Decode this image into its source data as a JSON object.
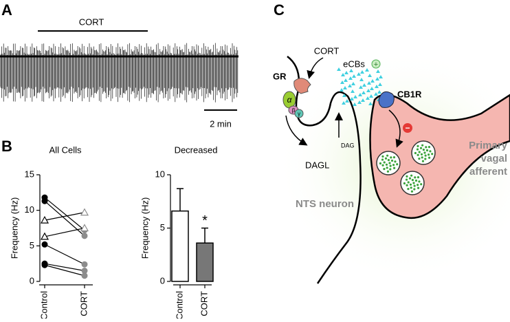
{
  "panel_a": {
    "label": "A",
    "drug": "CORT",
    "scale_bar": "2 min"
  },
  "panel_b": {
    "label": "B"
  },
  "chart_data": [
    {
      "type": "paired",
      "title": "All Cells",
      "y_label": "Frequency (Hz)",
      "categories": [
        "Control",
        "CORT"
      ],
      "colors": [
        "#000000",
        "#8c8c8c"
      ],
      "ylim": [
        0,
        15
      ],
      "yticks": [
        0,
        5,
        10,
        15
      ],
      "series": [
        {
          "marker": "circle",
          "values": [
            11.8,
            7.2
          ]
        },
        {
          "marker": "circle",
          "values": [
            11.3,
            6.4
          ]
        },
        {
          "marker": "triangle",
          "values": [
            8.6,
            9.7
          ]
        },
        {
          "marker": "triangle",
          "values": [
            6.3,
            7.5
          ]
        },
        {
          "marker": "circle",
          "values": [
            5.2,
            2.4
          ]
        },
        {
          "marker": "circle",
          "values": [
            2.5,
            1.5
          ]
        },
        {
          "marker": "circle",
          "values": [
            2.3,
            0.8
          ]
        }
      ]
    },
    {
      "type": "bar",
      "title": "Decreased",
      "y_label": "Frequency (Hz)",
      "categories": [
        "Control",
        "CORT"
      ],
      "values": [
        6.6,
        3.6
      ],
      "errors": [
        2.1,
        1.4
      ],
      "colors": [
        "#ffffff",
        "#777777"
      ],
      "ylim": [
        0,
        10
      ],
      "yticks": [
        0,
        5,
        10
      ],
      "annotation": "*"
    }
  ],
  "panel_c": {
    "label": "C",
    "drug": "CORT",
    "receptor": "GR",
    "alpha": "α",
    "beta": "β",
    "gamma": "γ",
    "ecbs": "eCBs",
    "plus": "+",
    "cb1r": "CB1R",
    "minus": "−",
    "dag": "DAG",
    "dagl": "DAGL",
    "neuron": "NTS neuron",
    "afferent": [
      "Primary",
      "vagal",
      "afferent"
    ]
  }
}
